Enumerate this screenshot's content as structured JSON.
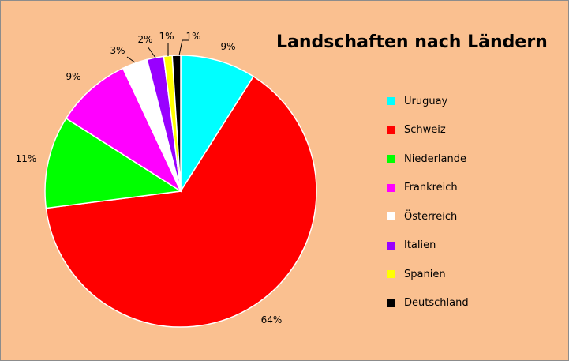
{
  "chart_data": {
    "type": "pie",
    "title": "Landschaften nach Ländern",
    "categories": [
      "Uruguay",
      "Schweiz",
      "Niederlande",
      "Frankreich",
      "Österreich",
      "Italien",
      "Spanien",
      "Deutschland"
    ],
    "values": [
      9,
      64,
      11,
      9,
      3,
      2,
      1,
      1
    ],
    "data_labels": [
      "9%",
      "64%",
      "11%",
      "9%",
      "3%",
      "2%",
      "1%",
      "1%"
    ],
    "colors": [
      "#00FFFF",
      "#FF0000",
      "#00FF00",
      "#FF00FF",
      "#FFFFFF",
      "#9900FF",
      "#FFFF00",
      "#000000"
    ],
    "legend_position": "right",
    "background_color": "#FAC090"
  }
}
